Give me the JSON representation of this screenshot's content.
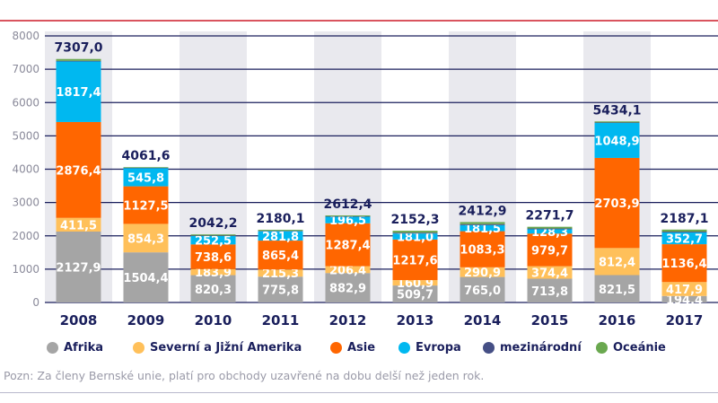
{
  "chart_data": {
    "type": "bar",
    "stacked": true,
    "categories": [
      "2008",
      "2009",
      "2010",
      "2011",
      "2012",
      "2013",
      "2014",
      "2015",
      "2016",
      "2017"
    ],
    "ylim": [
      0,
      8000
    ],
    "yticks": [
      0,
      1000,
      2000,
      3000,
      4000,
      5000,
      6000,
      7000,
      8000
    ],
    "grid": true,
    "legend_position": "bottom",
    "series": [
      {
        "name": "Afrika",
        "color": "#a5a5a5",
        "values": [
          2127.9,
          1504.4,
          820.3,
          775.8,
          882.9,
          509.7,
          765.0,
          713.8,
          821.5,
          194.4
        ],
        "labels": [
          "2127,9",
          "1504,4",
          "820,3",
          "775,8",
          "882,9",
          "509,7",
          "765,0",
          "713,8",
          "821,5",
          "194,4"
        ]
      },
      {
        "name": "Severní a Jižní Amerika",
        "color": "#ffc05a",
        "values": [
          411.5,
          854.3,
          183.9,
          215.3,
          206.4,
          160.9,
          290.9,
          374.4,
          812.4,
          417.9
        ],
        "labels": [
          "411,5",
          "854,3",
          "183,9",
          "215,3",
          "206,4",
          "160,9",
          "290,9",
          "374,4",
          "812,4",
          "417,9"
        ]
      },
      {
        "name": "Asie",
        "color": "#ff6600",
        "values": [
          2876.4,
          1127.5,
          738.6,
          865.4,
          1287.4,
          1217.6,
          1083.3,
          979.7,
          2703.9,
          1136.4
        ],
        "labels": [
          "2876,4",
          "1127,5",
          "738,6",
          "865,4",
          "1287,4",
          "1217,6",
          "1083,3",
          "979,7",
          "2703,9",
          "1136,4"
        ]
      },
      {
        "name": "Evropa",
        "color": "#00b8f0",
        "values": [
          1817.4,
          545.8,
          252.5,
          281.8,
          196.5,
          181.0,
          181.5,
          128.3,
          1048.9,
          352.7
        ],
        "labels": [
          "1817,4",
          "545,8",
          "252,5",
          "281,8",
          "196,5",
          "181,0",
          "181,5",
          "128,3",
          "1048,9",
          "352,7"
        ]
      },
      {
        "name": "mezinárodní",
        "color": "#454f85",
        "values": [
          20,
          10,
          15,
          12,
          12,
          25,
          30,
          25,
          15,
          25
        ]
      },
      {
        "name": "Oceánie",
        "color": "#6aa84f",
        "values": [
          53.8,
          19.6,
          31.9,
          29.8,
          27.2,
          58.1,
          62.2,
          50.5,
          32.4,
          60.7
        ]
      }
    ],
    "totals": [
      "7307,0",
      "4061,6",
      "2042,2",
      "2180,1",
      "2612,4",
      "2152,3",
      "2412,9",
      "2271,7",
      "5434,1",
      "2187,1"
    ]
  },
  "note": "Pozn: Za členy Bernské unie, platí pro obchody uzavřené na dobu delší než jeden rok.",
  "colors": {
    "axis_text": "#1a1f5c",
    "grid": "#1a1f5c",
    "band": "#e9e9ee",
    "title_line": "#d9545e"
  }
}
